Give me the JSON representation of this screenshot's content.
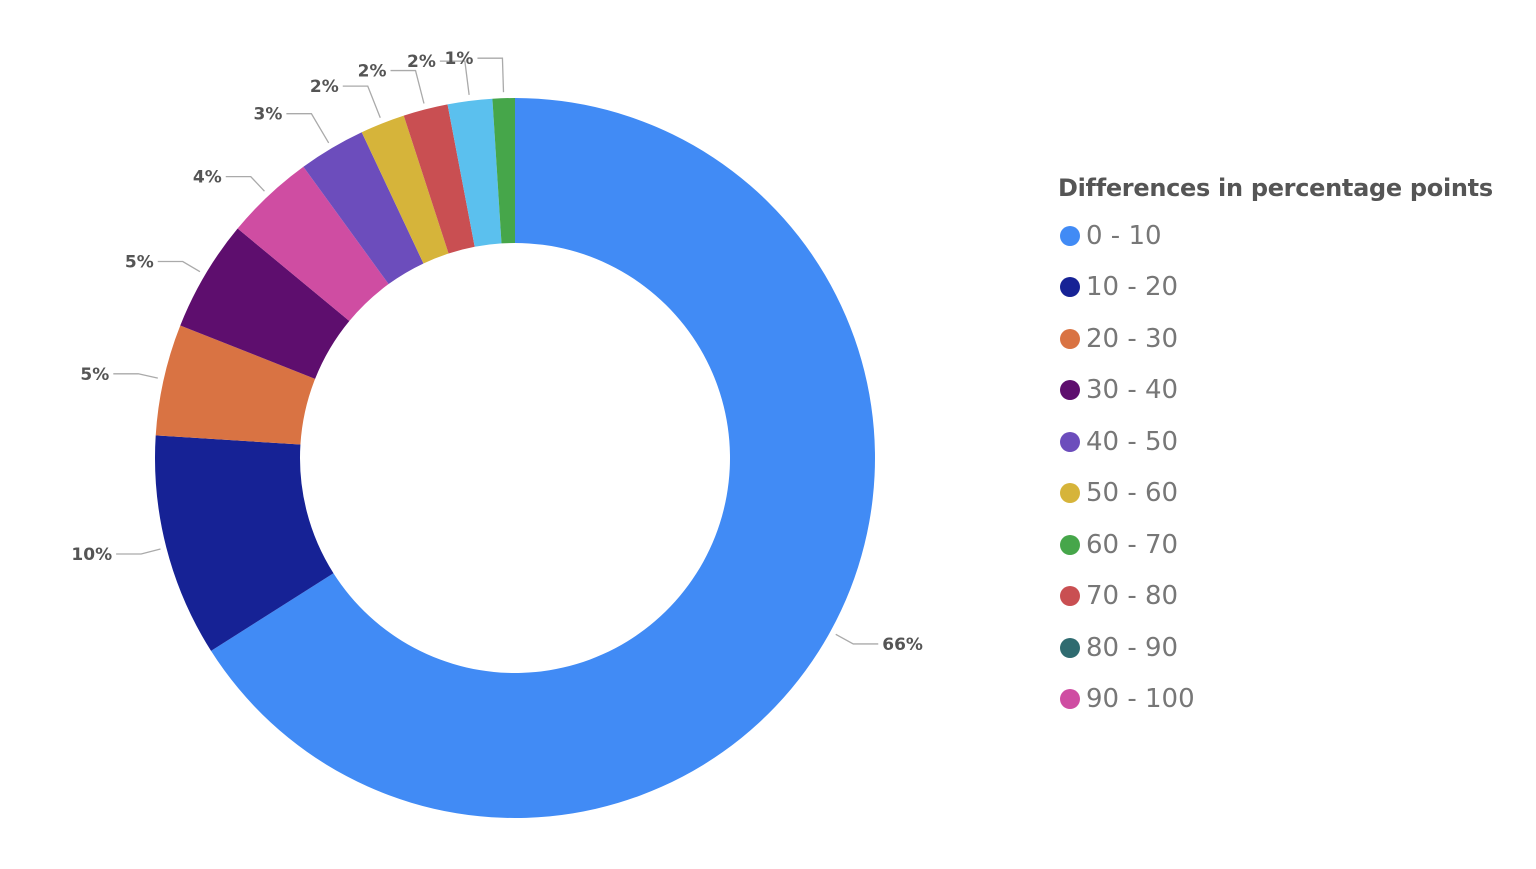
{
  "chart_data": {
    "type": "pie",
    "subtype": "donut",
    "legend_title": "Differences in percentage points",
    "legend_placement": "right",
    "legend": [
      {
        "label": "0 - 10",
        "color": "#418BF5"
      },
      {
        "label": "10 - 20",
        "color": "#162295"
      },
      {
        "label": "20 - 30",
        "color": "#D97343"
      },
      {
        "label": "30 - 40",
        "color": "#5E0E6E"
      },
      {
        "label": "40 - 50",
        "color": "#6C4DBC"
      },
      {
        "label": "50 - 60",
        "color": "#D6B43A"
      },
      {
        "label": "60 - 70",
        "color": "#46A64A"
      },
      {
        "label": "70 - 80",
        "color": "#C94F52"
      },
      {
        "label": "80 - 90",
        "color": "#2F6B70"
      },
      {
        "label": "90 - 100",
        "color": "#CF4DA2"
      }
    ],
    "slices": [
      {
        "category": "0 - 10",
        "value": 66,
        "label": "66%",
        "color": "#418BF5"
      },
      {
        "category": "10 - 20",
        "value": 10,
        "label": "10%",
        "color": "#162295"
      },
      {
        "category": "20 - 30",
        "value": 5,
        "label": "5%",
        "color": "#D97343"
      },
      {
        "category": "30 - 40",
        "value": 5,
        "label": "5%",
        "color": "#5E0E6E"
      },
      {
        "category": "90 - 100",
        "value": 4,
        "label": "4%",
        "color": "#CF4DA2"
      },
      {
        "category": "40 - 50",
        "value": 3,
        "label": "3%",
        "color": "#6C4DBC"
      },
      {
        "category": "50 - 60",
        "value": 2,
        "label": "2%",
        "color": "#D6B43A"
      },
      {
        "category": "70 - 80",
        "value": 2,
        "label": "2%",
        "color": "#C94F52"
      },
      {
        "category": null,
        "value": 2,
        "label": "2%",
        "color": "#5BC0EE"
      },
      {
        "category": "60 - 70",
        "value": 1,
        "label": "1%",
        "color": "#46A64A"
      }
    ]
  }
}
